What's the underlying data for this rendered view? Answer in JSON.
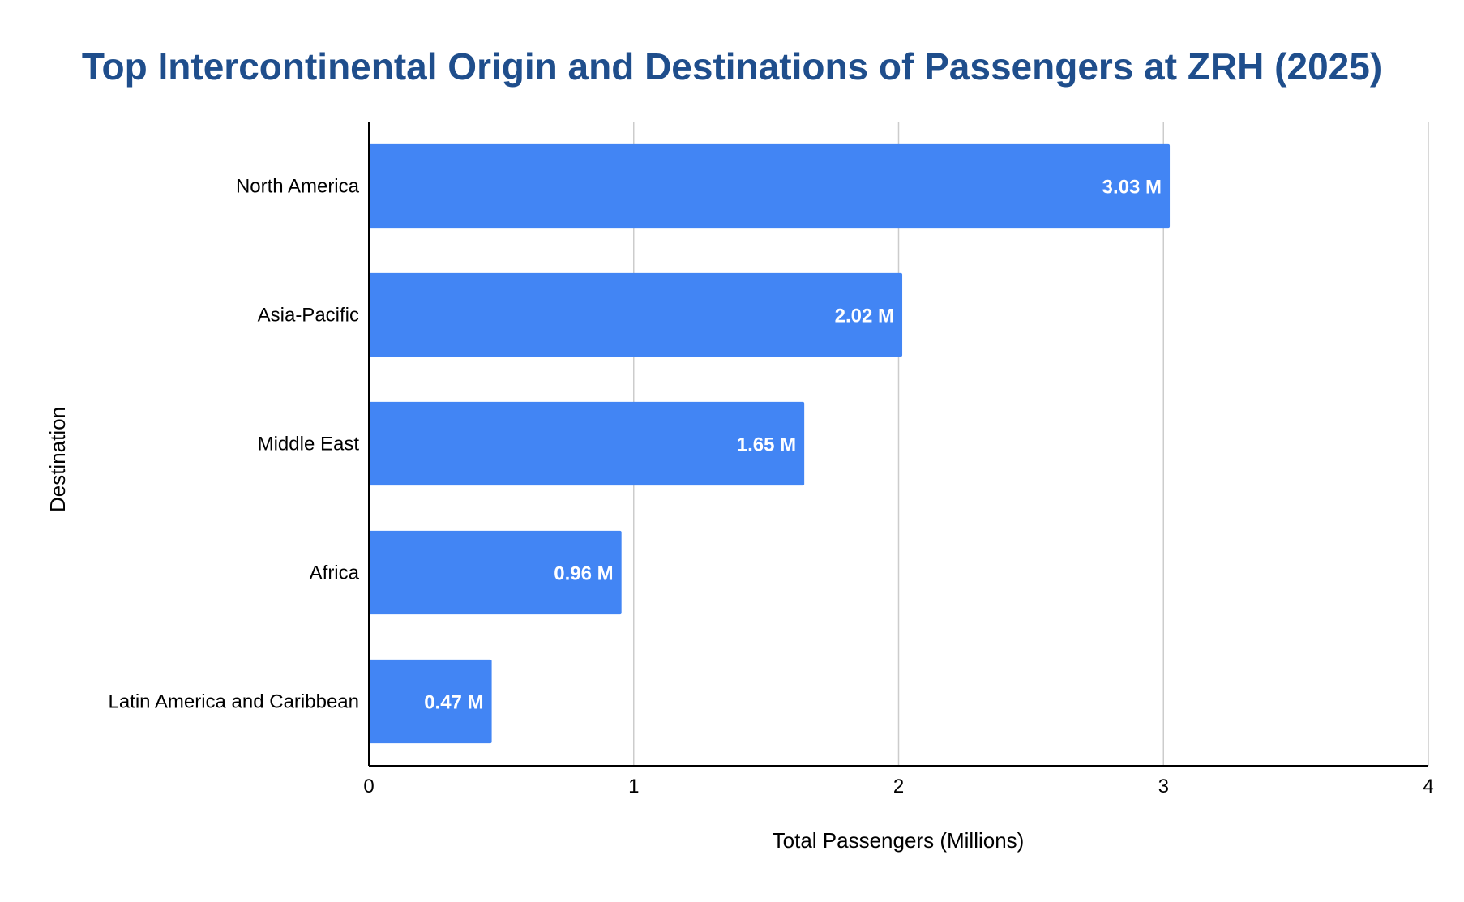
{
  "chart_data": {
    "type": "bar",
    "orientation": "horizontal",
    "title": "Top Intercontinental Origin and Destinations of Passengers at ZRH (2025)",
    "xlabel": "Total Passengers (Millions)",
    "ylabel": "Destination",
    "categories": [
      "North America",
      "Asia-Pacific",
      "Middle East",
      "Africa",
      "Latin America and Caribbean"
    ],
    "values": [
      3.03,
      2.02,
      1.65,
      0.96,
      0.47
    ],
    "data_labels": [
      "3.03 M",
      "2.02 M",
      "1.65 M",
      "0.96 M",
      "0.47 M"
    ],
    "xlim": [
      0,
      4
    ],
    "x_ticks": [
      "0",
      "1",
      "2",
      "3",
      "4"
    ],
    "grid": true,
    "legend": "none",
    "colors": {
      "title": "#1f4e8c",
      "bar": "#4285f4",
      "grid": "#cccccc",
      "axis": "#000000",
      "data_label": "#ffffff"
    }
  }
}
